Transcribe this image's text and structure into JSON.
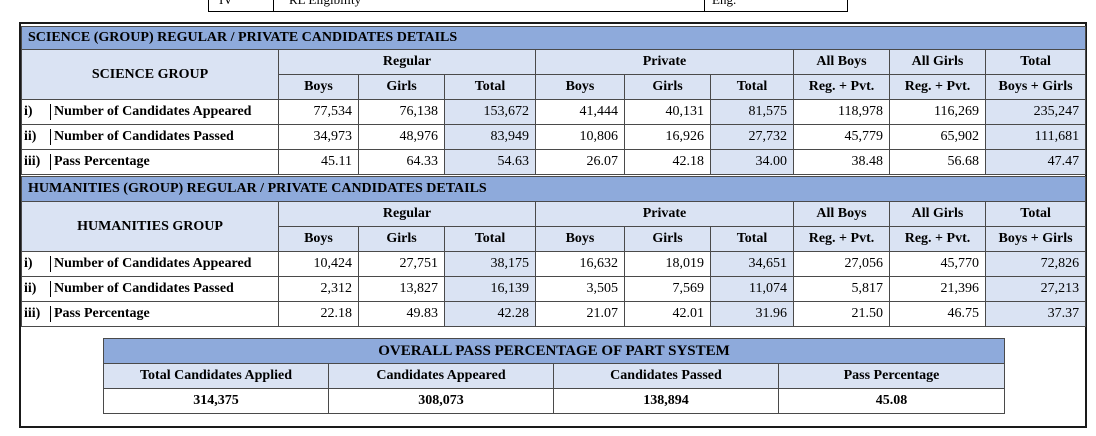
{
  "top_stub": {
    "cell1": "IV",
    "cell2": "RL Eligibility",
    "cell3": "Eng."
  },
  "science": {
    "section_title": "SCIENCE (GROUP) REGULAR / PRIVATE CANDIDATES DETAILS",
    "group_label": "SCIENCE GROUP",
    "headers": {
      "regular": "Regular",
      "private": "Private",
      "all_boys": "All Boys",
      "all_girls": "All Girls",
      "total": "Total",
      "boys": "Boys",
      "girls": "Girls",
      "total_sub": "Total",
      "reg_pvt_boys": "Reg. + Pvt.",
      "reg_pvt_girls": "Reg. + Pvt.",
      "boys_girls": "Boys + Girls"
    },
    "rows": [
      {
        "idx": "i)",
        "label": "Number of Candidates Appeared",
        "values": [
          "77,534",
          "76,138",
          "153,672",
          "41,444",
          "40,131",
          "81,575",
          "118,978",
          "116,269",
          "235,247"
        ]
      },
      {
        "idx": "ii)",
        "label": "Number of Candidates Passed",
        "values": [
          "34,973",
          "48,976",
          "83,949",
          "10,806",
          "16,926",
          "27,732",
          "45,779",
          "65,902",
          "111,681"
        ]
      },
      {
        "idx": "iii)",
        "label": "Pass Percentage",
        "values": [
          "45.11",
          "64.33",
          "54.63",
          "26.07",
          "42.18",
          "34.00",
          "38.48",
          "56.68",
          "47.47"
        ]
      }
    ]
  },
  "humanities": {
    "section_title": "HUMANITIES (GROUP) REGULAR / PRIVATE CANDIDATES DETAILS",
    "group_label": "HUMANITIES GROUP",
    "headers": {
      "regular": "Regular",
      "private": "Private",
      "all_boys": "All Boys",
      "all_girls": "All Girls",
      "total": "Total",
      "boys": "Boys",
      "girls": "Girls",
      "total_sub": "Total",
      "reg_pvt_boys": "Reg. + Pvt.",
      "reg_pvt_girls": "Reg. + Pvt.",
      "boys_girls": "Boys + Girls"
    },
    "rows": [
      {
        "idx": "i)",
        "label": "Number of Candidates Appeared",
        "values": [
          "10,424",
          "27,751",
          "38,175",
          "16,632",
          "18,019",
          "34,651",
          "27,056",
          "45,770",
          "72,826"
        ]
      },
      {
        "idx": "ii)",
        "label": "Number of Candidates Passed",
        "values": [
          "2,312",
          "13,827",
          "16,139",
          "3,505",
          "7,569",
          "11,074",
          "5,817",
          "21,396",
          "27,213"
        ]
      },
      {
        "idx": "iii)",
        "label": "Pass Percentage",
        "values": [
          "22.18",
          "49.83",
          "42.28",
          "21.07",
          "42.01",
          "31.96",
          "21.50",
          "46.75",
          "37.37"
        ]
      }
    ]
  },
  "overall": {
    "title": "OVERALL PASS PERCENTAGE OF PART SYSTEM",
    "headers": [
      "Total Candidates Applied",
      "Candidates Appeared",
      "Candidates Passed",
      "Pass Percentage"
    ],
    "values": [
      "314,375",
      "308,073",
      "138,894",
      "45.08"
    ]
  }
}
